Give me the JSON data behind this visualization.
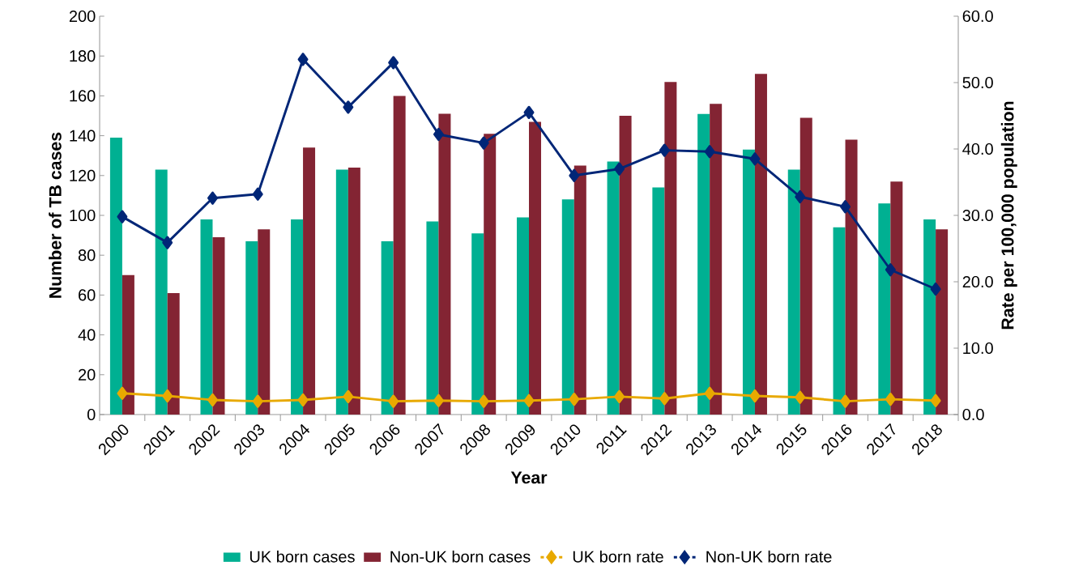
{
  "chart_data": {
    "type": "bar",
    "xlabel": "Year",
    "ylabel": "Number of TB cases",
    "y2label": "Rate per 100,000 population",
    "categories": [
      "2000",
      "2001",
      "2002",
      "2003",
      "2004",
      "2005",
      "2006",
      "2007",
      "2008",
      "2009",
      "2010",
      "2011",
      "2012",
      "2013",
      "2014",
      "2015",
      "2016",
      "2017",
      "2018"
    ],
    "series": [
      {
        "name": "UK born cases",
        "color": "#00b092",
        "values": [
          139,
          123,
          98,
          87,
          98,
          123,
          87,
          97,
          91,
          99,
          108,
          127,
          114,
          151,
          133,
          123,
          94,
          106,
          98
        ]
      },
      {
        "name": "Non-UK born cases",
        "color": "#832433",
        "values": [
          70,
          61,
          89,
          93,
          134,
          124,
          160,
          151,
          141,
          147,
          125,
          150,
          167,
          156,
          171,
          149,
          138,
          117,
          93
        ]
      },
      {
        "name": "UK born rate",
        "type": "line",
        "axis": "y2",
        "color": "#e8a900",
        "values": [
          3.2,
          2.8,
          2.2,
          2.0,
          2.2,
          2.7,
          2.0,
          2.1,
          2.0,
          2.1,
          2.3,
          2.7,
          2.4,
          3.2,
          2.8,
          2.6,
          2.0,
          2.3,
          2.1
        ]
      },
      {
        "name": "Non-UK born rate",
        "type": "line",
        "axis": "y2",
        "color": "#002677",
        "values": [
          29.8,
          25.9,
          32.6,
          33.2,
          53.5,
          46.3,
          53.0,
          42.2,
          40.9,
          45.5,
          36.0,
          37.0,
          39.8,
          39.6,
          38.5,
          32.8,
          31.3,
          21.8,
          18.9
        ]
      }
    ],
    "ylim": [
      0,
      200
    ],
    "yticks": [
      0,
      20,
      40,
      60,
      80,
      100,
      120,
      140,
      160,
      180,
      200
    ],
    "y2lim": [
      0,
      60
    ],
    "y2ticks": [
      {
        "value": 0,
        "label": "0.0"
      },
      {
        "value": 10,
        "label": "10.0"
      },
      {
        "value": 20,
        "label": "20.0"
      },
      {
        "value": 30,
        "label": "30.0"
      },
      {
        "value": 40,
        "label": "40.0"
      },
      {
        "value": 50,
        "label": "50.0"
      },
      {
        "value": 60,
        "label": "60.0"
      }
    ],
    "marker": "diamond",
    "legend": "bottom",
    "grid": false
  }
}
